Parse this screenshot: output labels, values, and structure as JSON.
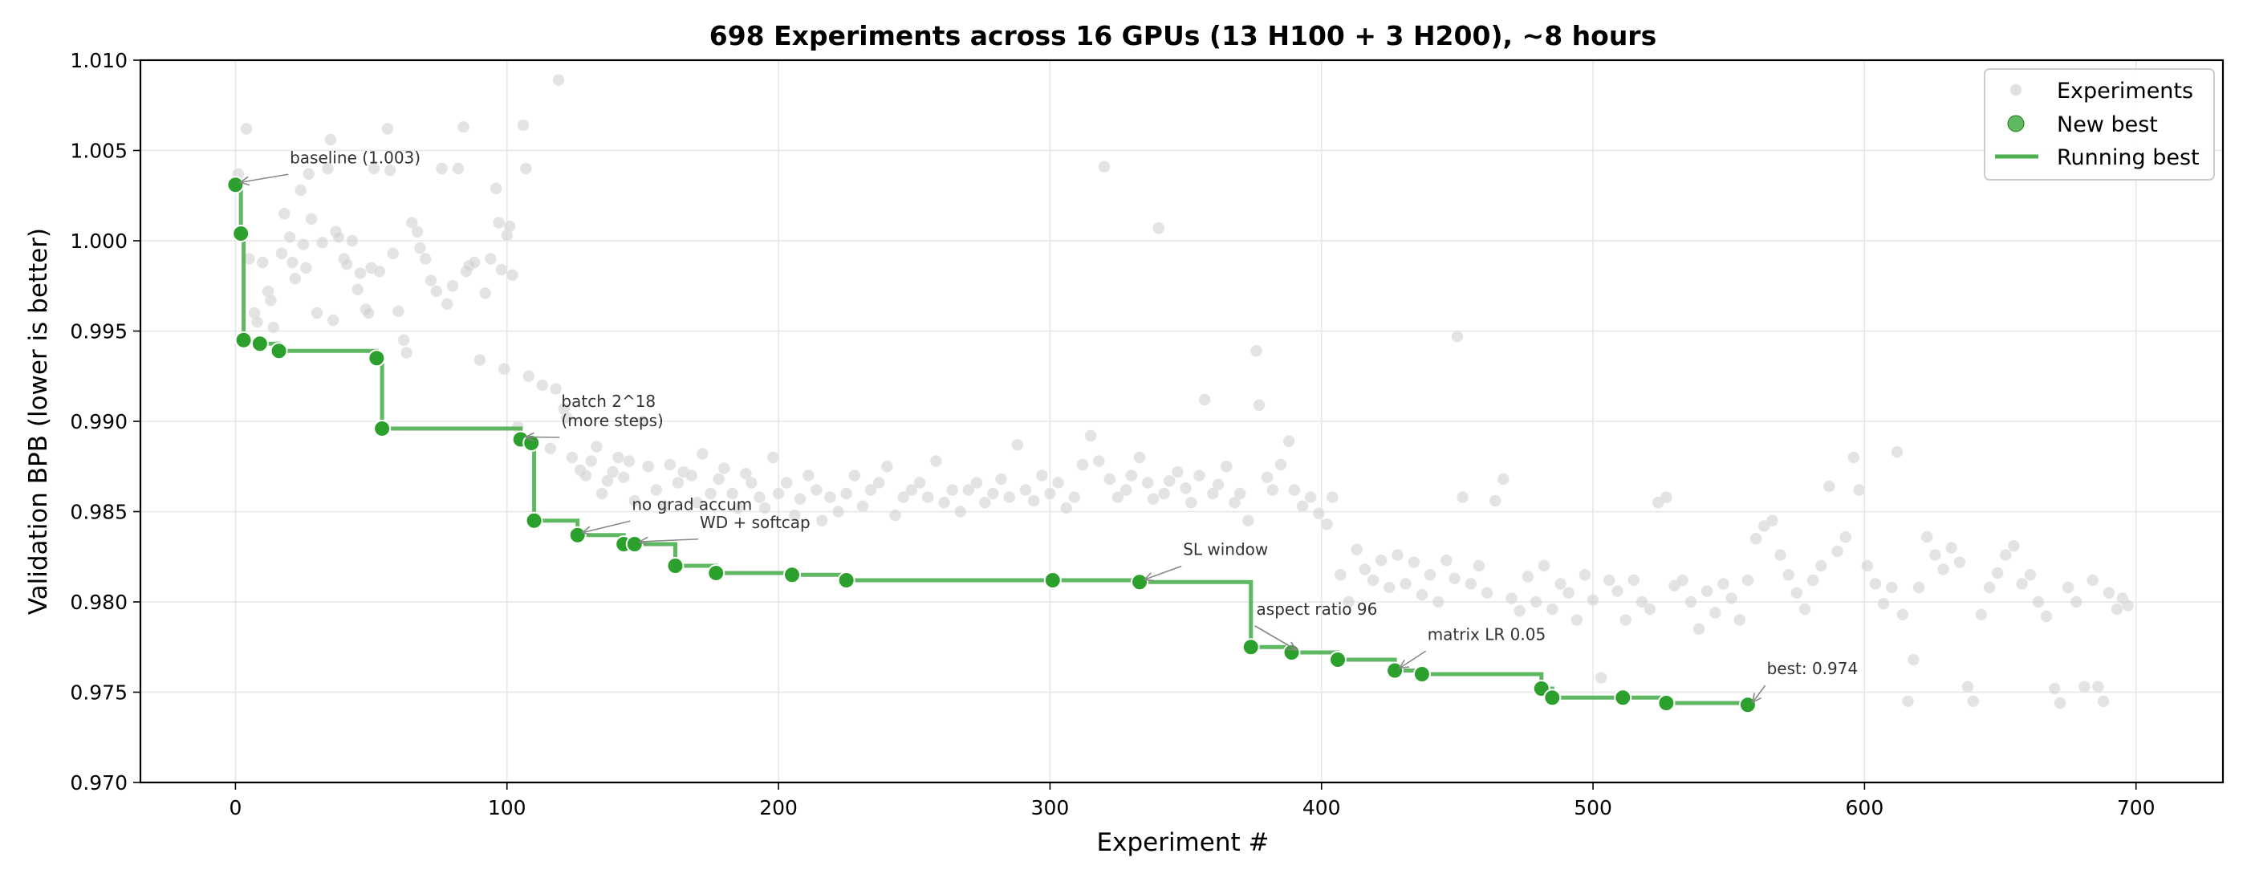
{
  "chart_data": {
    "type": "scatter",
    "title": "698 Experiments across 16 GPUs (13 H100 + 3 H200), ~8 hours",
    "xlabel": "Experiment #",
    "ylabel": "Validation BPB (lower is better)",
    "xlim": [
      -35,
      732
    ],
    "ylim": [
      0.97,
      1.01
    ],
    "xticks": [
      0,
      100,
      200,
      300,
      400,
      500,
      600,
      700
    ],
    "yticks": [
      "0.970",
      "0.975",
      "0.980",
      "0.985",
      "0.990",
      "0.995",
      "1.000",
      "1.005",
      "1.010"
    ],
    "grid": true,
    "legend_position": "top-right",
    "legend": [
      "Experiments",
      "New best",
      "Running best"
    ],
    "colors": {
      "experiments": "#cccccc",
      "new_best": "#2ca02c",
      "running_best": "#4caf50",
      "annotation": "#333333"
    },
    "new_best": [
      [
        0,
        1.0031
      ],
      [
        2,
        1.0004
      ],
      [
        3,
        0.9945
      ],
      [
        9,
        0.9943
      ],
      [
        16,
        0.9939
      ],
      [
        52,
        0.9935
      ],
      [
        54,
        0.9896
      ],
      [
        105,
        0.989
      ],
      [
        109,
        0.9888
      ],
      [
        110,
        0.9845
      ],
      [
        126,
        0.9837
      ],
      [
        143,
        0.9832
      ],
      [
        147,
        0.9832
      ],
      [
        162,
        0.982
      ],
      [
        177,
        0.9816
      ],
      [
        205,
        0.9815
      ],
      [
        225,
        0.9812
      ],
      [
        301,
        0.9812
      ],
      [
        333,
        0.9811
      ],
      [
        374,
        0.9775
      ],
      [
        389,
        0.9772
      ],
      [
        406,
        0.9768
      ],
      [
        427,
        0.9762
      ],
      [
        437,
        0.976
      ],
      [
        481,
        0.9752
      ],
      [
        485,
        0.9747
      ],
      [
        511,
        0.9747
      ],
      [
        527,
        0.9744
      ],
      [
        557,
        0.9743
      ]
    ],
    "experiments": [
      [
        1,
        1.0037
      ],
      [
        4,
        1.0062
      ],
      [
        5,
        0.999
      ],
      [
        7,
        0.996
      ],
      [
        8,
        0.9955
      ],
      [
        10,
        0.9988
      ],
      [
        12,
        0.9972
      ],
      [
        13,
        0.9967
      ],
      [
        14,
        0.9952
      ],
      [
        15,
        0.994
      ],
      [
        17,
        0.9993
      ],
      [
        18,
        1.0015
      ],
      [
        20,
        1.0002
      ],
      [
        21,
        0.9988
      ],
      [
        22,
        0.9979
      ],
      [
        24,
        1.0028
      ],
      [
        25,
        0.9998
      ],
      [
        26,
        0.9985
      ],
      [
        27,
        1.0037
      ],
      [
        28,
        1.0012
      ],
      [
        30,
        0.996
      ],
      [
        32,
        0.9999
      ],
      [
        34,
        1.004
      ],
      [
        35,
        1.0056
      ],
      [
        36,
        0.9956
      ],
      [
        37,
        1.0005
      ],
      [
        38,
        1.0002
      ],
      [
        40,
        0.999
      ],
      [
        41,
        0.9987
      ],
      [
        43,
        1.0
      ],
      [
        45,
        0.9973
      ],
      [
        46,
        0.9982
      ],
      [
        48,
        0.9962
      ],
      [
        49,
        0.996
      ],
      [
        50,
        0.9985
      ],
      [
        51,
        1.004
      ],
      [
        53,
        0.9983
      ],
      [
        56,
        1.0062
      ],
      [
        57,
        1.0039
      ],
      [
        58,
        0.9993
      ],
      [
        60,
        0.9961
      ],
      [
        62,
        0.9945
      ],
      [
        63,
        0.9938
      ],
      [
        65,
        1.001
      ],
      [
        67,
        1.0005
      ],
      [
        68,
        0.9996
      ],
      [
        70,
        0.999
      ],
      [
        72,
        0.9978
      ],
      [
        74,
        0.9972
      ],
      [
        76,
        1.004
      ],
      [
        78,
        0.9965
      ],
      [
        80,
        0.9975
      ],
      [
        82,
        1.004
      ],
      [
        84,
        1.0063
      ],
      [
        85,
        0.9983
      ],
      [
        86,
        0.9986
      ],
      [
        88,
        0.9988
      ],
      [
        90,
        0.9934
      ],
      [
        92,
        0.9971
      ],
      [
        94,
        0.999
      ],
      [
        96,
        1.0029
      ],
      [
        97,
        1.001
      ],
      [
        98,
        0.9984
      ],
      [
        99,
        0.9929
      ],
      [
        100,
        1.0003
      ],
      [
        101,
        1.0008
      ],
      [
        102,
        0.9981
      ],
      [
        104,
        0.9897
      ],
      [
        106,
        1.0064
      ],
      [
        107,
        1.004
      ],
      [
        108,
        0.9925
      ],
      [
        113,
        0.992
      ],
      [
        116,
        0.9885
      ],
      [
        118,
        0.9918
      ],
      [
        119,
        1.0089
      ],
      [
        121,
        0.9907
      ],
      [
        122,
        0.9902
      ],
      [
        124,
        0.988
      ],
      [
        127,
        0.9873
      ],
      [
        129,
        0.987
      ],
      [
        131,
        0.9878
      ],
      [
        133,
        0.9886
      ],
      [
        135,
        0.986
      ],
      [
        137,
        0.9867
      ],
      [
        139,
        0.9872
      ],
      [
        141,
        0.988
      ],
      [
        143,
        0.9869
      ],
      [
        145,
        0.9878
      ],
      [
        147,
        0.9856
      ],
      [
        150,
        0.99
      ],
      [
        152,
        0.9875
      ],
      [
        155,
        0.9862
      ],
      [
        158,
        0.9853
      ],
      [
        160,
        0.9876
      ],
      [
        163,
        0.9866
      ],
      [
        165,
        0.9872
      ],
      [
        168,
        0.987
      ],
      [
        170,
        0.9855
      ],
      [
        172,
        0.9882
      ],
      [
        175,
        0.986
      ],
      [
        178,
        0.9868
      ],
      [
        180,
        0.9874
      ],
      [
        183,
        0.986
      ],
      [
        185,
        0.9852
      ],
      [
        188,
        0.9871
      ],
      [
        190,
        0.9866
      ],
      [
        193,
        0.9858
      ],
      [
        195,
        0.9852
      ],
      [
        198,
        0.988
      ],
      [
        200,
        0.986
      ],
      [
        203,
        0.9866
      ],
      [
        206,
        0.9848
      ],
      [
        208,
        0.9857
      ],
      [
        211,
        0.987
      ],
      [
        214,
        0.9862
      ],
      [
        216,
        0.9845
      ],
      [
        219,
        0.9858
      ],
      [
        222,
        0.985
      ],
      [
        225,
        0.986
      ],
      [
        228,
        0.987
      ],
      [
        231,
        0.9853
      ],
      [
        234,
        0.9862
      ],
      [
        237,
        0.9866
      ],
      [
        240,
        0.9875
      ],
      [
        243,
        0.9848
      ],
      [
        246,
        0.9858
      ],
      [
        249,
        0.9862
      ],
      [
        252,
        0.9866
      ],
      [
        255,
        0.9858
      ],
      [
        258,
        0.9878
      ],
      [
        261,
        0.9855
      ],
      [
        264,
        0.9862
      ],
      [
        267,
        0.985
      ],
      [
        270,
        0.9862
      ],
      [
        273,
        0.9866
      ],
      [
        276,
        0.9855
      ],
      [
        279,
        0.986
      ],
      [
        282,
        0.9868
      ],
      [
        285,
        0.9858
      ],
      [
        288,
        0.9887
      ],
      [
        291,
        0.9862
      ],
      [
        294,
        0.9856
      ],
      [
        297,
        0.987
      ],
      [
        300,
        0.986
      ],
      [
        303,
        0.9866
      ],
      [
        306,
        0.9852
      ],
      [
        309,
        0.9858
      ],
      [
        312,
        0.9876
      ],
      [
        315,
        0.9892
      ],
      [
        318,
        0.9878
      ],
      [
        320,
        1.0041
      ],
      [
        322,
        0.9868
      ],
      [
        325,
        0.9858
      ],
      [
        328,
        0.9862
      ],
      [
        330,
        0.987
      ],
      [
        333,
        0.988
      ],
      [
        336,
        0.9866
      ],
      [
        338,
        0.9857
      ],
      [
        340,
        1.0007
      ],
      [
        342,
        0.986
      ],
      [
        344,
        0.9867
      ],
      [
        347,
        0.9872
      ],
      [
        350,
        0.9863
      ],
      [
        352,
        0.9855
      ],
      [
        355,
        0.987
      ],
      [
        357,
        0.9912
      ],
      [
        360,
        0.986
      ],
      [
        362,
        0.9865
      ],
      [
        365,
        0.9875
      ],
      [
        368,
        0.9855
      ],
      [
        370,
        0.986
      ],
      [
        373,
        0.9845
      ],
      [
        376,
        0.9939
      ],
      [
        377,
        0.9909
      ],
      [
        380,
        0.9869
      ],
      [
        382,
        0.9862
      ],
      [
        385,
        0.9876
      ],
      [
        388,
        0.9889
      ],
      [
        390,
        0.9862
      ],
      [
        393,
        0.9853
      ],
      [
        396,
        0.9858
      ],
      [
        399,
        0.9849
      ],
      [
        402,
        0.9843
      ],
      [
        404,
        0.9858
      ],
      [
        407,
        0.9815
      ],
      [
        410,
        0.98
      ],
      [
        413,
        0.9829
      ],
      [
        416,
        0.9818
      ],
      [
        419,
        0.9812
      ],
      [
        422,
        0.9823
      ],
      [
        425,
        0.9808
      ],
      [
        428,
        0.9826
      ],
      [
        431,
        0.981
      ],
      [
        434,
        0.9822
      ],
      [
        437,
        0.9804
      ],
      [
        440,
        0.9815
      ],
      [
        443,
        0.98
      ],
      [
        446,
        0.9823
      ],
      [
        449,
        0.9813
      ],
      [
        450,
        0.9947
      ],
      [
        452,
        0.9858
      ],
      [
        455,
        0.981
      ],
      [
        458,
        0.982
      ],
      [
        461,
        0.9805
      ],
      [
        464,
        0.9856
      ],
      [
        467,
        0.9868
      ],
      [
        470,
        0.9802
      ],
      [
        473,
        0.9795
      ],
      [
        476,
        0.9814
      ],
      [
        479,
        0.98
      ],
      [
        482,
        0.982
      ],
      [
        485,
        0.9796
      ],
      [
        488,
        0.981
      ],
      [
        491,
        0.9805
      ],
      [
        494,
        0.979
      ],
      [
        497,
        0.9815
      ],
      [
        500,
        0.9801
      ],
      [
        503,
        0.9758
      ],
      [
        506,
        0.9812
      ],
      [
        509,
        0.9806
      ],
      [
        512,
        0.979
      ],
      [
        515,
        0.9812
      ],
      [
        518,
        0.98
      ],
      [
        521,
        0.9796
      ],
      [
        524,
        0.9855
      ],
      [
        527,
        0.9858
      ],
      [
        530,
        0.9809
      ],
      [
        533,
        0.9812
      ],
      [
        536,
        0.98
      ],
      [
        539,
        0.9785
      ],
      [
        542,
        0.9806
      ],
      [
        545,
        0.9794
      ],
      [
        548,
        0.981
      ],
      [
        551,
        0.9802
      ],
      [
        554,
        0.979
      ],
      [
        557,
        0.9812
      ],
      [
        560,
        0.9835
      ],
      [
        563,
        0.9842
      ],
      [
        566,
        0.9845
      ],
      [
        569,
        0.9826
      ],
      [
        572,
        0.9815
      ],
      [
        575,
        0.9805
      ],
      [
        578,
        0.9796
      ],
      [
        581,
        0.9812
      ],
      [
        584,
        0.982
      ],
      [
        587,
        0.9864
      ],
      [
        590,
        0.9828
      ],
      [
        593,
        0.9836
      ],
      [
        596,
        0.988
      ],
      [
        598,
        0.9862
      ],
      [
        601,
        0.982
      ],
      [
        604,
        0.981
      ],
      [
        607,
        0.9799
      ],
      [
        610,
        0.9808
      ],
      [
        612,
        0.9883
      ],
      [
        614,
        0.9793
      ],
      [
        616,
        0.9745
      ],
      [
        618,
        0.9768
      ],
      [
        620,
        0.9808
      ],
      [
        623,
        0.9836
      ],
      [
        626,
        0.9826
      ],
      [
        629,
        0.9818
      ],
      [
        632,
        0.983
      ],
      [
        635,
        0.9822
      ],
      [
        638,
        0.9753
      ],
      [
        640,
        0.9745
      ],
      [
        643,
        0.9793
      ],
      [
        646,
        0.9808
      ],
      [
        649,
        0.9816
      ],
      [
        652,
        0.9826
      ],
      [
        655,
        0.9831
      ],
      [
        658,
        0.981
      ],
      [
        661,
        0.9815
      ],
      [
        664,
        0.98
      ],
      [
        667,
        0.9792
      ],
      [
        670,
        0.9752
      ],
      [
        672,
        0.9744
      ],
      [
        675,
        0.9808
      ],
      [
        678,
        0.98
      ],
      [
        681,
        0.9753
      ],
      [
        684,
        0.9812
      ],
      [
        686,
        0.9753
      ],
      [
        688,
        0.9745
      ],
      [
        690,
        0.9805
      ],
      [
        693,
        0.9796
      ],
      [
        695,
        0.9802
      ],
      [
        697,
        0.9798
      ]
    ],
    "annotations": [
      {
        "text": "baseline (1.003)",
        "target": [
          0,
          1.0031
        ],
        "text_at": [
          20,
          1.0043
        ]
      },
      {
        "text": "batch 2^18",
        "line2": "(more steps)",
        "target": [
          105,
          0.989
        ],
        "text_at": [
          120,
          0.9908
        ]
      },
      {
        "text": "no grad accum",
        "target": [
          126,
          0.9837
        ],
        "text_at": [
          146,
          0.9851
        ]
      },
      {
        "text": "WD + softcap",
        "target": [
          147,
          0.9832
        ],
        "text_at": [
          171,
          0.9841
        ]
      },
      {
        "text": "SL window",
        "target": [
          333,
          0.9811
        ],
        "text_at": [
          349,
          0.9826
        ]
      },
      {
        "text": "aspect ratio 96",
        "target": [
          389,
          0.9772
        ],
        "text_at": [
          376,
          0.9793
        ]
      },
      {
        "text": "matrix LR 0.05",
        "target": [
          427,
          0.9762
        ],
        "text_at": [
          439,
          0.9779
        ]
      },
      {
        "text": "best: 0.974",
        "target": [
          557,
          0.9743
        ],
        "text_at": [
          564,
          0.976
        ]
      }
    ]
  }
}
